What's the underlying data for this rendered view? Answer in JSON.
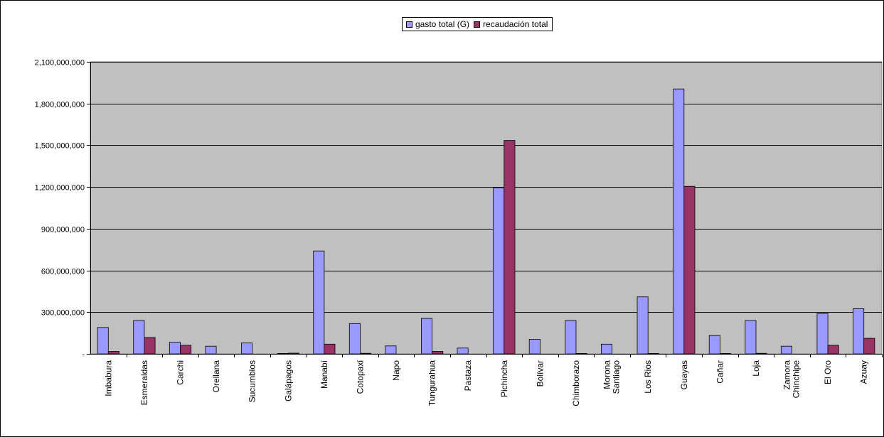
{
  "chart_data": {
    "type": "bar",
    "title": "",
    "xlabel": "",
    "ylabel": "",
    "ylim": [
      0,
      2100000000
    ],
    "yticks": [
      0,
      300000000,
      600000000,
      900000000,
      1200000000,
      1500000000,
      1800000000,
      2100000000
    ],
    "ytick_labels": [
      "-",
      "300,000,000",
      "600,000,000",
      "900,000,000",
      "1,200,000,000",
      "1,500,000,000",
      "1,800,000,000",
      "2,100,000,000"
    ],
    "grid": true,
    "legend_position": "top-center",
    "categories": [
      "Imbabura",
      "Esmeraldas",
      "Carchi",
      "Orellana",
      "Sucumbios",
      "Galápagos",
      "Manabí",
      "Cotopaxi",
      "Napo",
      "Tungurahua",
      "Pastaza",
      "Pichincha",
      "Bolívar",
      "Chimborazo",
      "Morona\nSantiago",
      "Los Rios",
      "Guayas",
      "Cañar",
      "Loja",
      "Zamora\nChinchipe",
      "El Oro",
      "Azuay"
    ],
    "series": [
      {
        "name": "gasto total (G)",
        "color": "#9999ff",
        "values": [
          190000000,
          240000000,
          85000000,
          55000000,
          78000000,
          3000000,
          740000000,
          218000000,
          57000000,
          255000000,
          42000000,
          1195000000,
          105000000,
          240000000,
          70000000,
          410000000,
          1905000000,
          132000000,
          240000000,
          55000000,
          290000000,
          325000000
        ]
      },
      {
        "name": "recaudación total",
        "color": "#993366",
        "values": [
          18000000,
          118000000,
          62000000,
          0,
          0,
          5000000,
          70000000,
          4000000,
          0,
          18000000,
          0,
          1535000000,
          0,
          3000000,
          0,
          3000000,
          1205000000,
          3000000,
          4000000,
          0,
          62000000,
          112000000
        ]
      }
    ]
  },
  "colors": {
    "plot_background": "#c0c0c0",
    "gridline": "#000000"
  }
}
